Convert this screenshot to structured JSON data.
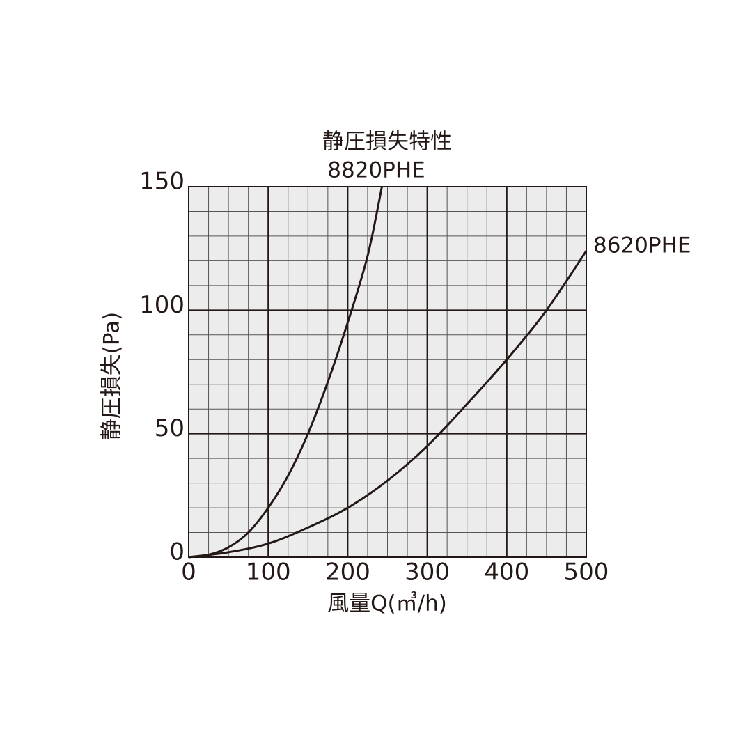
{
  "chart_data": {
    "type": "line",
    "title": "静圧損失特性",
    "x_label": "風量Q(㎥/h)",
    "y_label": "静圧損失(Pa)",
    "xlim": [
      0,
      500
    ],
    "ylim": [
      0,
      150
    ],
    "xticks": [
      0,
      100,
      200,
      300,
      400,
      500
    ],
    "yticks": [
      0,
      50,
      100,
      150
    ],
    "minor_xticks": [
      25,
      50,
      75,
      125,
      150,
      175,
      225,
      250,
      275,
      325,
      350,
      375,
      425,
      450,
      475
    ],
    "minor_yticks": [
      10,
      20,
      30,
      40,
      60,
      70,
      80,
      90,
      110,
      120,
      130,
      140
    ],
    "grid": true,
    "series": [
      {
        "name": "8820PHE",
        "color": "#231815",
        "x": [
          0,
          25,
          50,
          75,
          100,
          125,
          150,
          175,
          200,
          225,
          243
        ],
        "values": [
          0,
          1,
          4,
          10,
          20,
          33,
          50,
          71,
          95,
          122,
          150
        ]
      },
      {
        "name": "8620PHE",
        "color": "#231815",
        "x": [
          0,
          50,
          100,
          150,
          200,
          250,
          300,
          350,
          400,
          450,
          500
        ],
        "values": [
          0,
          2,
          5.5,
          12,
          20,
          31,
          45,
          62,
          80,
          100,
          124
        ]
      }
    ]
  }
}
